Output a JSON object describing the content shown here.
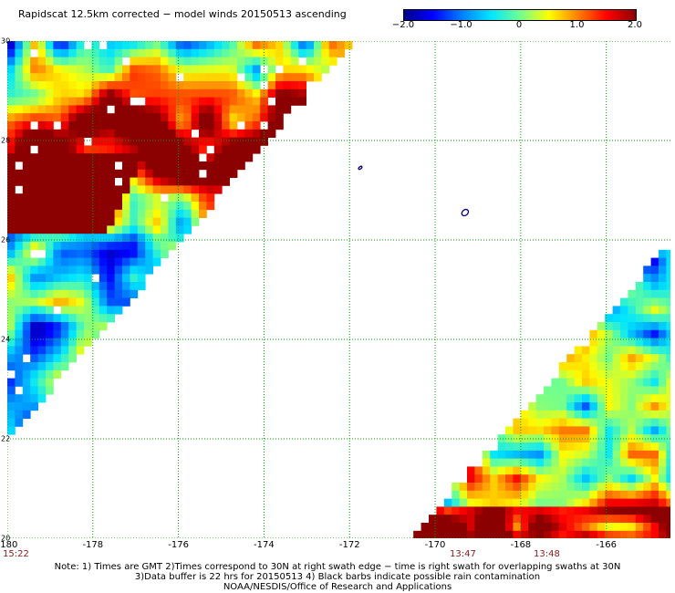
{
  "title": "Rapidscat 12.5km corrected − model winds 20150513 ascending",
  "colorbar": {
    "ticks": [
      "−2.0",
      "−1.0",
      "0",
      "1.0",
      "2.0"
    ],
    "tick_values": [
      -2.0,
      -1.0,
      0,
      1.0,
      2.0
    ],
    "range": [
      -2.0,
      2.0
    ],
    "colors": [
      "#00008b",
      "#0000ff",
      "#0080ff",
      "#00e5ff",
      "#70ff90",
      "#ffff00",
      "#ff8000",
      "#ff0000",
      "#8b0000"
    ]
  },
  "map": {
    "lon_range": [
      -180,
      -164.5
    ],
    "lat_range": [
      20,
      30
    ],
    "x_ticks": [
      "-180",
      "-178",
      "-176",
      "-174",
      "-172",
      "-170",
      "-168",
      "-166"
    ],
    "x_tick_values": [
      -180,
      -178,
      -176,
      -174,
      -172,
      -170,
      -168,
      -166
    ],
    "y_ticks": [
      "30",
      "28",
      "26",
      "24",
      "22",
      "20"
    ],
    "y_tick_values": [
      30,
      28,
      26,
      24,
      22,
      20
    ],
    "grid": true,
    "swaths": [
      {
        "edge": "upper-left",
        "lon_edge_at_30N": -171.8,
        "lon_edge_at_20N": -182.0
      },
      {
        "edge": "lower-right",
        "lon_edge_at_20N": -170.6,
        "lon_edge_at_26N": -164.5
      }
    ]
  },
  "times": {
    "t1": "15:22",
    "t2": "13:47",
    "t3": "13:48"
  },
  "notes": {
    "line1": "Note: 1) Times are GMT 2)Times correspond to 30N at right swath edge − time is right swath for overlapping swaths at 30N",
    "line2": "3)Data buffer is 22 hrs for 20150513 4) Black barbs indicate possible rain contamination",
    "line3": "NOAA/NESDIS/Office of Research and Applications"
  }
}
